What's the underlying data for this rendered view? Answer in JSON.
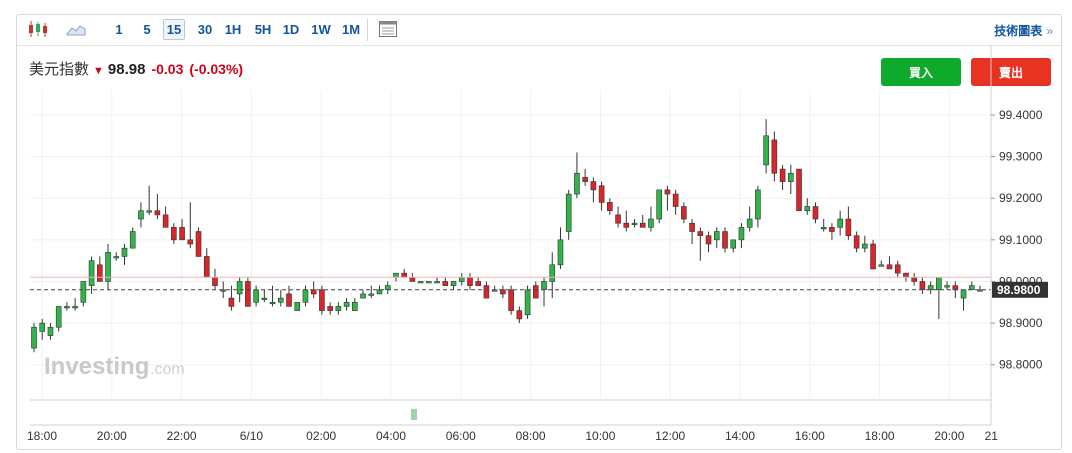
{
  "toolbar": {
    "icons": [
      "candlestick-icon",
      "area-chart-icon",
      "table-icon"
    ],
    "intervals": [
      "1",
      "5",
      "15",
      "30",
      "1H",
      "5H",
      "1D",
      "1W",
      "1M"
    ],
    "active_interval": "15",
    "tech_link": "技術圖表",
    "tech_arrow": "»"
  },
  "quote": {
    "name": "美元指數",
    "direction": "down",
    "price": "98.98",
    "change": "-0.03",
    "change_pct": "(-0.03%)"
  },
  "buttons": {
    "buy": "買入",
    "sell": "賣出"
  },
  "watermark": {
    "brand": "Investing",
    "suffix": ".com"
  },
  "colors": {
    "up": "#2fb54a",
    "down": "#d8262a",
    "buy": "#0eaa2b",
    "sell": "#e83323",
    "link": "#1256a0"
  },
  "chart_data": {
    "type": "candlestick",
    "ylim": [
      98.72,
      99.46
    ],
    "y_ticks": [
      "99.4000",
      "99.3000",
      "99.2000",
      "99.1000",
      "99.0000",
      "98.9000",
      "98.8000"
    ],
    "y_tick_values": [
      99.4,
      99.3,
      99.2,
      99.1,
      99.0,
      98.9,
      98.8
    ],
    "current_price": 98.98,
    "current_label": "98.9800",
    "reference_line": 99.01,
    "x_labels": [
      "18:00",
      "20:00",
      "22:00",
      "6/10",
      "02:00",
      "04:00",
      "06:00",
      "08:00",
      "10:00",
      "12:00",
      "14:00",
      "16:00",
      "18:00",
      "20:00",
      "21"
    ],
    "x_label_hours": [
      0,
      2,
      4,
      6,
      8,
      10,
      12,
      14,
      16,
      18,
      20,
      22,
      24,
      26,
      27.2
    ],
    "candles_ohlc": [
      [
        98.84,
        98.9,
        98.83,
        98.89
      ],
      [
        98.88,
        98.91,
        98.86,
        98.9
      ],
      [
        98.87,
        98.9,
        98.86,
        98.89
      ],
      [
        98.89,
        98.94,
        98.88,
        98.94
      ],
      [
        98.94,
        98.95,
        98.93,
        98.94
      ],
      [
        98.94,
        98.96,
        98.93,
        98.94
      ],
      [
        98.95,
        99.0,
        98.94,
        99.0
      ],
      [
        98.99,
        99.06,
        98.97,
        99.05
      ],
      [
        99.04,
        99.06,
        99.0,
        99.0
      ],
      [
        99.0,
        99.09,
        98.98,
        99.07
      ],
      [
        99.06,
        99.07,
        99.05,
        99.06
      ],
      [
        99.06,
        99.09,
        99.04,
        99.08
      ],
      [
        99.08,
        99.13,
        99.08,
        99.12
      ],
      [
        99.15,
        99.19,
        99.13,
        99.17
      ],
      [
        99.17,
        99.23,
        99.16,
        99.17
      ],
      [
        99.17,
        99.21,
        99.15,
        99.16
      ],
      [
        99.16,
        99.18,
        99.14,
        99.13
      ],
      [
        99.13,
        99.14,
        99.09,
        99.1
      ],
      [
        99.13,
        99.15,
        99.11,
        99.1
      ],
      [
        99.1,
        99.19,
        99.08,
        99.09
      ],
      [
        99.12,
        99.13,
        99.06,
        99.06
      ],
      [
        99.06,
        99.08,
        99.01,
        99.01
      ],
      [
        99.01,
        99.03,
        98.98,
        98.99
      ],
      [
        98.98,
        99.0,
        98.96,
        98.98
      ],
      [
        98.96,
        98.99,
        98.93,
        98.94
      ],
      [
        98.97,
        99.01,
        98.95,
        99.0
      ],
      [
        99.0,
        99.01,
        98.94,
        98.94
      ],
      [
        98.95,
        98.99,
        98.94,
        98.98
      ],
      [
        98.96,
        98.98,
        98.95,
        98.96
      ],
      [
        98.95,
        98.99,
        98.94,
        98.95
      ],
      [
        98.95,
        98.98,
        98.94,
        98.96
      ],
      [
        98.97,
        98.99,
        98.94,
        98.94
      ],
      [
        98.93,
        98.95,
        98.93,
        98.95
      ],
      [
        98.95,
        98.99,
        98.94,
        98.98
      ],
      [
        98.98,
        99.0,
        98.96,
        98.97
      ],
      [
        98.98,
        98.99,
        98.92,
        98.93
      ],
      [
        98.94,
        98.95,
        98.92,
        98.93
      ],
      [
        98.93,
        98.95,
        98.92,
        98.94
      ],
      [
        98.94,
        98.96,
        98.93,
        98.95
      ],
      [
        98.93,
        98.96,
        98.93,
        98.95
      ],
      [
        98.96,
        98.98,
        98.96,
        98.97
      ],
      [
        98.97,
        98.99,
        98.96,
        98.97
      ],
      [
        98.97,
        98.99,
        98.97,
        98.98
      ],
      [
        98.98,
        99.0,
        98.97,
        98.99
      ],
      [
        99.01,
        99.02,
        99.0,
        99.02
      ],
      [
        99.02,
        99.03,
        99.01,
        99.01
      ],
      [
        99.01,
        99.02,
        99.0,
        99.0
      ],
      [
        99.0,
        99.0,
        99.0,
        99.0
      ],
      [
        99.0,
        99.0,
        99.0,
        99.0
      ],
      [
        99.0,
        99.01,
        99.0,
        99.0
      ],
      [
        99.0,
        99.01,
        98.99,
        98.99
      ],
      [
        98.99,
        99.0,
        98.98,
        99.0
      ],
      [
        99.0,
        99.02,
        98.99,
        99.01
      ],
      [
        99.01,
        99.02,
        98.98,
        98.99
      ],
      [
        99.0,
        99.01,
        98.99,
        98.99
      ],
      [
        98.99,
        99.0,
        98.96,
        98.96
      ],
      [
        98.98,
        98.99,
        98.98,
        98.98
      ],
      [
        98.98,
        98.99,
        98.96,
        98.97
      ],
      [
        98.98,
        98.99,
        98.92,
        98.93
      ],
      [
        98.93,
        98.94,
        98.9,
        98.91
      ],
      [
        98.92,
        98.99,
        98.91,
        98.98
      ],
      [
        98.99,
        99.0,
        98.96,
        98.96
      ],
      [
        98.98,
        99.01,
        98.94,
        99.0
      ],
      [
        99.0,
        99.07,
        98.96,
        99.04
      ],
      [
        99.04,
        99.13,
        99.03,
        99.1
      ],
      [
        99.12,
        99.22,
        99.1,
        99.21
      ],
      [
        99.21,
        99.31,
        99.2,
        99.26
      ],
      [
        99.25,
        99.27,
        99.23,
        99.24
      ],
      [
        99.24,
        99.25,
        99.19,
        99.22
      ],
      [
        99.23,
        99.24,
        99.17,
        99.19
      ],
      [
        99.19,
        99.2,
        99.16,
        99.17
      ],
      [
        99.16,
        99.18,
        99.13,
        99.14
      ],
      [
        99.14,
        99.17,
        99.12,
        99.13
      ],
      [
        99.14,
        99.15,
        99.13,
        99.14
      ],
      [
        99.14,
        99.16,
        99.13,
        99.13
      ],
      [
        99.13,
        99.18,
        99.12,
        99.15
      ],
      [
        99.15,
        99.22,
        99.14,
        99.22
      ],
      [
        99.22,
        99.23,
        99.17,
        99.21
      ],
      [
        99.21,
        99.22,
        99.16,
        99.18
      ],
      [
        99.18,
        99.19,
        99.14,
        99.15
      ],
      [
        99.14,
        99.15,
        99.09,
        99.12
      ],
      [
        99.12,
        99.13,
        99.05,
        99.11
      ],
      [
        99.11,
        99.12,
        99.07,
        99.09
      ],
      [
        99.1,
        99.13,
        99.08,
        99.12
      ],
      [
        99.12,
        99.13,
        99.07,
        99.08
      ],
      [
        99.08,
        99.1,
        99.07,
        99.1
      ],
      [
        99.1,
        99.14,
        99.08,
        99.13
      ],
      [
        99.13,
        99.18,
        99.12,
        99.15
      ],
      [
        99.15,
        99.23,
        99.13,
        99.22
      ],
      [
        99.28,
        99.39,
        99.26,
        99.35
      ],
      [
        99.34,
        99.36,
        99.24,
        99.26
      ],
      [
        99.27,
        99.28,
        99.22,
        99.24
      ],
      [
        99.24,
        99.28,
        99.21,
        99.26
      ],
      [
        99.27,
        99.27,
        99.17,
        99.17
      ],
      [
        99.17,
        99.2,
        99.16,
        99.18
      ],
      [
        99.18,
        99.19,
        99.14,
        99.15
      ],
      [
        99.13,
        99.15,
        99.12,
        99.13
      ],
      [
        99.13,
        99.14,
        99.1,
        99.12
      ],
      [
        99.13,
        99.17,
        99.11,
        99.15
      ],
      [
        99.15,
        99.18,
        99.1,
        99.11
      ],
      [
        99.11,
        99.12,
        99.07,
        99.08
      ],
      [
        99.08,
        99.11,
        99.07,
        99.09
      ],
      [
        99.09,
        99.1,
        99.03,
        99.03
      ],
      [
        99.04,
        99.05,
        99.04,
        99.04
      ],
      [
        99.04,
        99.06,
        99.03,
        99.03
      ],
      [
        99.04,
        99.05,
        99.01,
        99.02
      ],
      [
        99.02,
        99.02,
        99.0,
        99.01
      ],
      [
        99.01,
        99.02,
        98.99,
        99.0
      ],
      [
        99.0,
        99.01,
        98.97,
        98.98
      ],
      [
        98.98,
        99.0,
        98.97,
        98.99
      ],
      [
        98.98,
        99.01,
        98.91,
        99.01
      ],
      [
        98.99,
        99.0,
        98.98,
        98.99
      ],
      [
        98.99,
        99.0,
        98.96,
        98.98
      ],
      [
        98.96,
        98.98,
        98.93,
        98.98
      ],
      [
        98.98,
        99.0,
        98.98,
        98.99
      ],
      [
        98.98,
        98.99,
        98.98,
        98.98
      ]
    ]
  }
}
